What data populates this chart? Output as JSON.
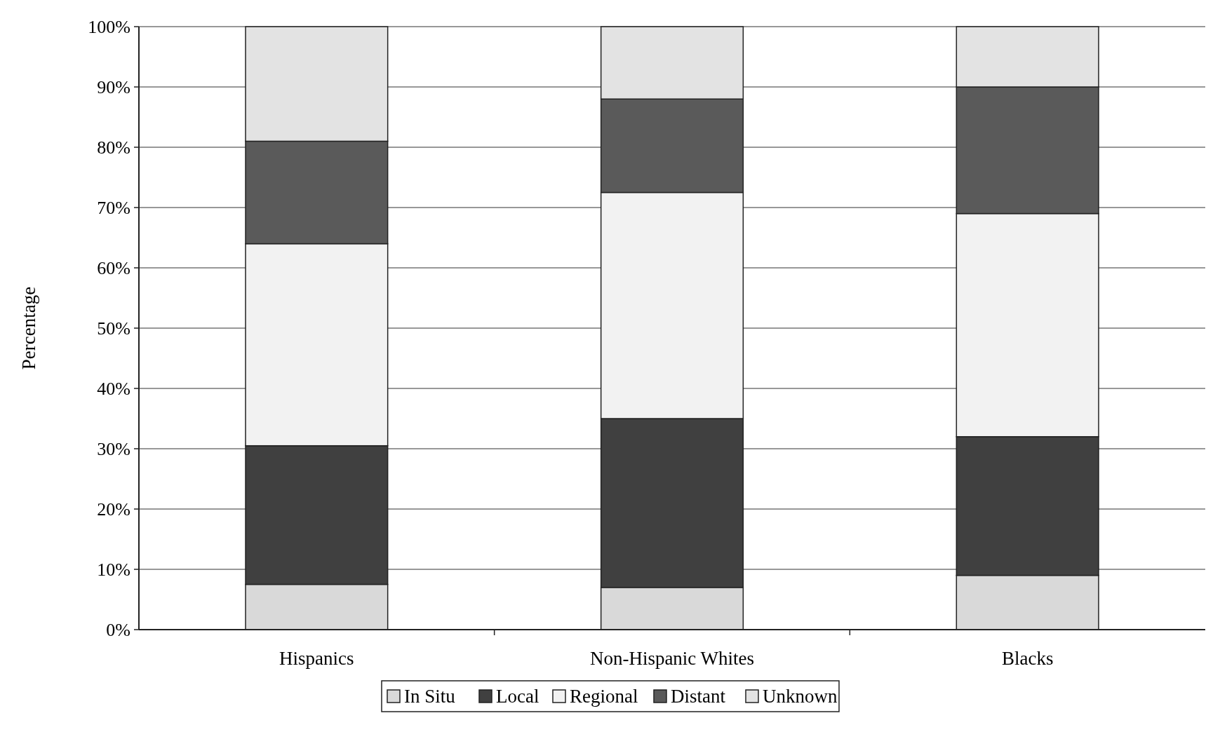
{
  "chart_data": {
    "type": "bar",
    "stacked": true,
    "ylabel": "Percentage",
    "categories": [
      "Hispanics",
      "Non-Hispanic Whites",
      "Blacks"
    ],
    "series": [
      {
        "name": "In Situ",
        "color": "#d9d9d9",
        "values": [
          7.5,
          7,
          9
        ]
      },
      {
        "name": "Local",
        "color": "#404040",
        "values": [
          23,
          28,
          23
        ]
      },
      {
        "name": "Regional",
        "color": "#f2f2f2",
        "values": [
          33.5,
          37.5,
          37
        ]
      },
      {
        "name": "Distant",
        "color": "#5a5a5a",
        "values": [
          17,
          15.5,
          21
        ]
      },
      {
        "name": "Unknown",
        "color": "#e3e3e3",
        "values": [
          19,
          12,
          10
        ]
      }
    ],
    "ylim": [
      0,
      100
    ],
    "yticks": [
      {
        "value": 0,
        "label": "0%"
      },
      {
        "value": 10,
        "label": "10%"
      },
      {
        "value": 20,
        "label": "20%"
      },
      {
        "value": 30,
        "label": "30%"
      },
      {
        "value": 40,
        "label": "40%"
      },
      {
        "value": 50,
        "label": "50%"
      },
      {
        "value": 60,
        "label": "60%"
      },
      {
        "value": 70,
        "label": "70%"
      },
      {
        "value": 80,
        "label": "80%"
      },
      {
        "value": 90,
        "label": "90%"
      },
      {
        "value": 100,
        "label": "100%"
      }
    ],
    "grid": "y",
    "legend": "bottom"
  }
}
